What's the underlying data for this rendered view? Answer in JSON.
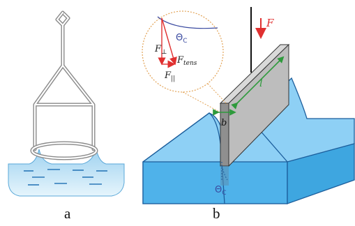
{
  "panels": {
    "a": {
      "label": "a"
    },
    "b": {
      "label": "b"
    }
  },
  "inset": {
    "theta": "Θ",
    "theta_sub": "C",
    "f_perp": "F",
    "f_perp_sub": "⊥",
    "f_tens": "F",
    "f_tens_sub": "tens",
    "f_par": "F",
    "f_par_sub": "||"
  },
  "plate": {
    "force": "F",
    "length": "l",
    "width": "b",
    "theta": "Θ",
    "theta_sub": "C"
  },
  "colors": {
    "water_light": "#aad8f2",
    "water_mid": "#6ec3ee",
    "water_dark": "#3ea6e0",
    "outline": "#1c5e9c",
    "force_red": "#e03030",
    "dimension_green": "#2e9a3c",
    "plate_gray": "#bcbcbc",
    "ring_wire": "#9a9a9a",
    "inset_border": "#e2a255",
    "theta_blue": "#3a4aa0"
  }
}
